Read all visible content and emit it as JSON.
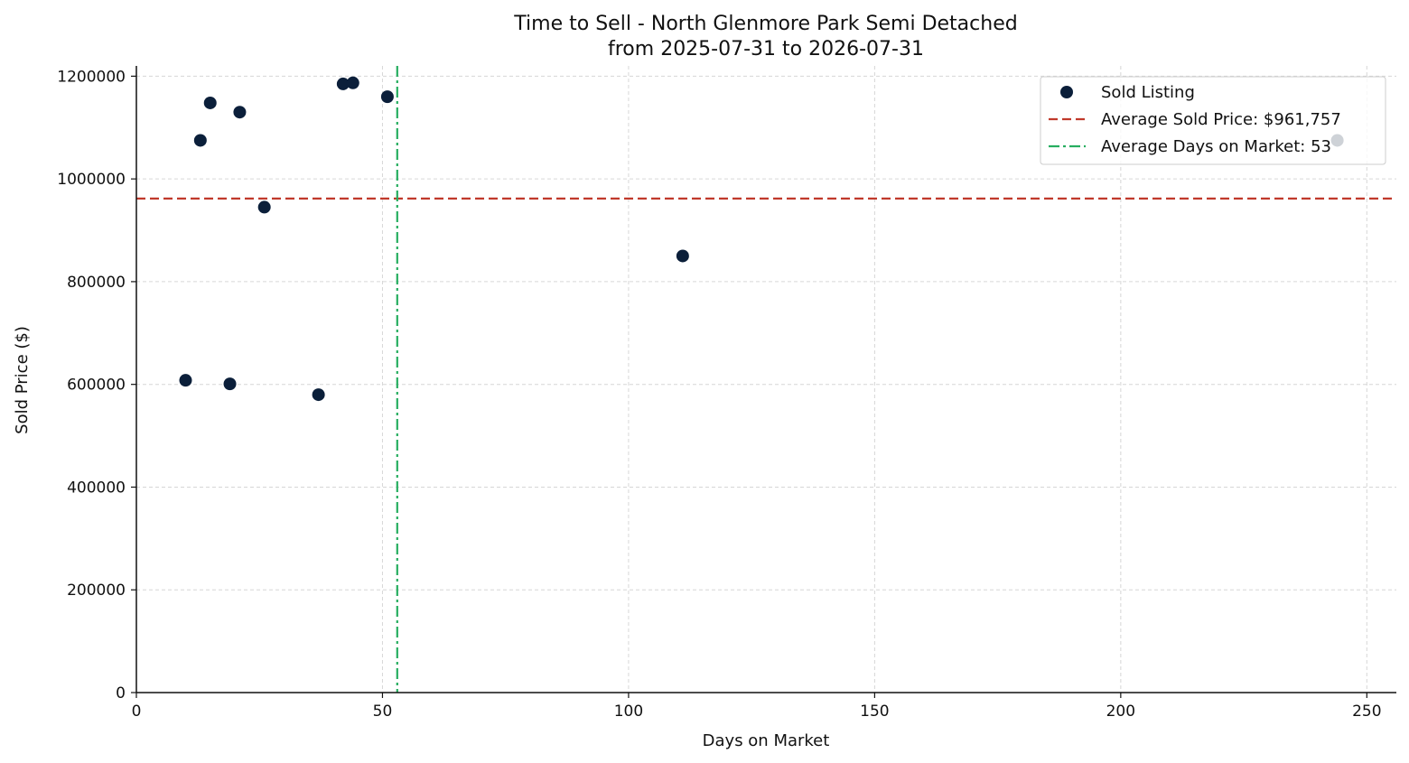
{
  "chart_data": {
    "type": "scatter",
    "title_line1": "Time to Sell - North Glenmore Park Semi Detached",
    "title_line2": "from 2025-07-31 to 2026-07-31",
    "xlabel": "Days on Market",
    "ylabel": "Sold Price ($)",
    "xlim": [
      0,
      256
    ],
    "ylim": [
      0,
      1220000
    ],
    "xticks": [
      0,
      50,
      100,
      150,
      200,
      250
    ],
    "yticks": [
      0,
      200000,
      400000,
      600000,
      800000,
      1000000,
      1200000
    ],
    "grid": true,
    "legend_placement": "top-right",
    "series": [
      {
        "name": "Sold Listing",
        "color": "#0b1f3a",
        "points": [
          {
            "x": 10,
            "y": 608000
          },
          {
            "x": 13,
            "y": 1075000
          },
          {
            "x": 15,
            "y": 1148000
          },
          {
            "x": 19,
            "y": 601000
          },
          {
            "x": 21,
            "y": 1130000
          },
          {
            "x": 26,
            "y": 945000
          },
          {
            "x": 37,
            "y": 580000
          },
          {
            "x": 42,
            "y": 1185000
          },
          {
            "x": 44,
            "y": 1187000
          },
          {
            "x": 51,
            "y": 1160000
          },
          {
            "x": 111,
            "y": 850000
          },
          {
            "x": 244,
            "y": 1075000
          }
        ]
      }
    ],
    "reference_lines": [
      {
        "orientation": "horizontal",
        "value": 961757,
        "label": "Average Sold Price: $961,757",
        "color": "#c0392b",
        "style": "dashed"
      },
      {
        "orientation": "vertical",
        "value": 53,
        "label": "Average Days on Market: 53",
        "color": "#27ae60",
        "style": "dashdot"
      }
    ]
  }
}
